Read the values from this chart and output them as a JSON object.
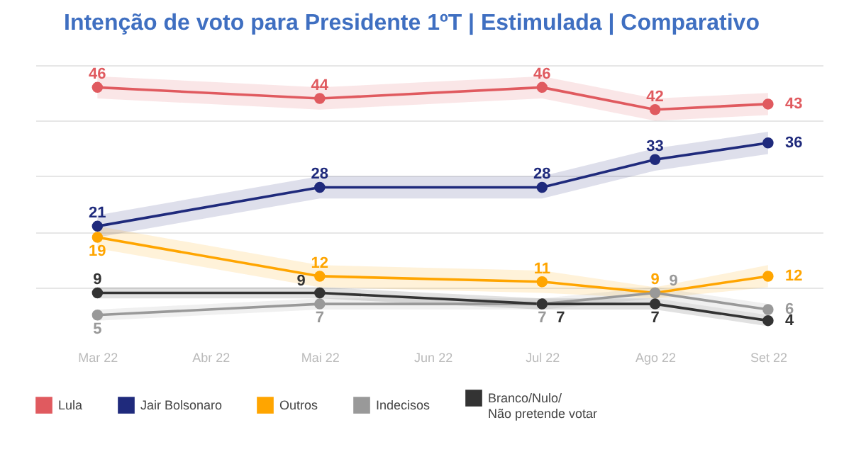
{
  "chart_data": {
    "type": "line",
    "title": "Intenção de voto para Presidente 1ºT | Estimulada | Comparativo",
    "x": [
      "2022-03",
      "2022-05",
      "2022-07",
      "2022-08",
      "2022-09"
    ],
    "xlim": [
      "2022-02-12",
      "2022-09-16"
    ],
    "xticks": [
      {
        "value": "2022-03",
        "label": "Mar 22"
      },
      {
        "value": "2022-04",
        "label": "Abr 22"
      },
      {
        "value": "2022-05",
        "label": "Mai 22"
      },
      {
        "value": "2022-06",
        "label": "Jun 22"
      },
      {
        "value": "2022-07",
        "label": "Jul 22"
      },
      {
        "value": "2022-08",
        "label": "Ago 22"
      },
      {
        "value": "2022-09",
        "label": "Set 22"
      }
    ],
    "yticks": [
      10,
      20,
      30,
      40,
      50
    ],
    "tick_labels": "x",
    "grid": "y",
    "series": [
      {
        "name": "Lula",
        "color": "#e05a5f",
        "values": [
          46,
          44,
          46,
          42,
          43
        ],
        "lower": [
          44,
          42,
          44,
          40,
          41
        ],
        "upper": [
          48,
          46,
          48,
          44,
          45
        ]
      },
      {
        "name": "Jair Bolsonaro",
        "color": "#1f2a7c",
        "values": [
          21,
          28,
          28,
          33,
          36
        ],
        "lower": [
          19,
          26,
          26,
          31,
          34
        ],
        "upper": [
          23,
          30,
          30,
          35,
          38
        ]
      },
      {
        "name": "Outros",
        "color": "#ffa500",
        "values": [
          19,
          12,
          11,
          9,
          12
        ],
        "lower": [
          17,
          10,
          9,
          8,
          10
        ],
        "upper": [
          21,
          14,
          13,
          10,
          14
        ]
      },
      {
        "name": "Indecisos",
        "color": "#999999",
        "values": [
          5,
          7,
          7,
          9,
          6
        ],
        "lower": [
          4,
          6,
          6,
          8,
          5
        ],
        "upper": [
          6,
          8,
          8,
          10,
          7
        ]
      },
      {
        "name": "Branco/Nulo/\nNão pretende votar",
        "color": "#333333",
        "values": [
          9,
          9,
          7,
          7,
          4
        ],
        "lower": [
          8,
          8,
          6,
          6,
          3
        ],
        "upper": [
          10,
          10,
          8,
          8,
          5
        ]
      }
    ],
    "marker": "circle",
    "line_style": "solid",
    "data_labels": true,
    "legend": "bottom"
  }
}
